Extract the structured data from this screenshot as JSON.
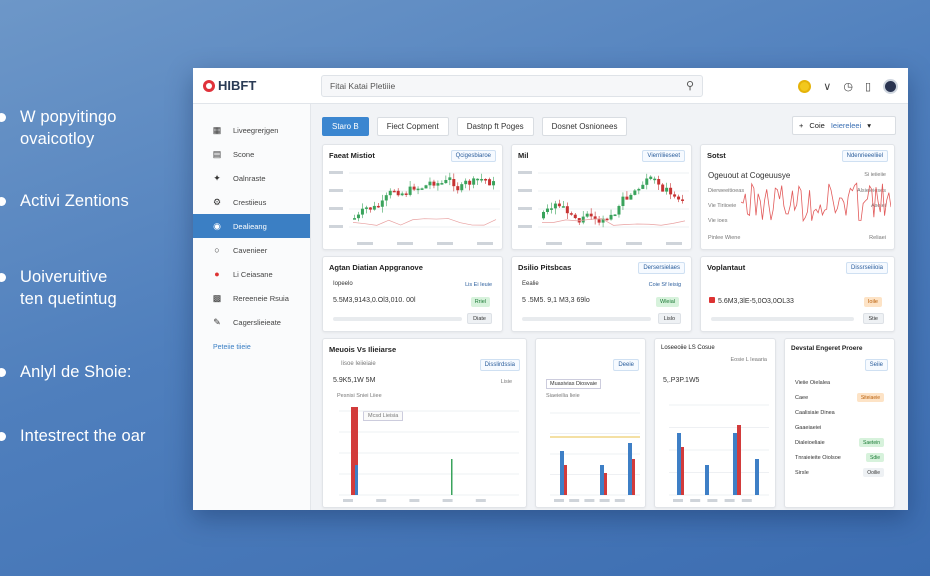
{
  "bullets": [
    {
      "text": "W popyitingo\novaicotloy"
    },
    {
      "text": "Activi Zentions"
    },
    {
      "text": "Uoiveruitive\nten quetintug"
    },
    {
      "text": "Anlyl de Shoie:"
    },
    {
      "text": "Intestrect the oar"
    }
  ],
  "app": {
    "logo_text": "HIBFT",
    "search_placeholder": "Fitai Katai Pletiiie",
    "top_icons": [
      "coin-icon",
      "chevron-down-icon",
      "clock-icon",
      "bookmark-icon",
      "avatar"
    ]
  },
  "sidebar": {
    "items": [
      {
        "label": "Liveegrerjgen",
        "icon": "grid-icon"
      },
      {
        "label": "Scone",
        "icon": "document-icon"
      },
      {
        "label": "Oalnraste",
        "icon": "person-icon"
      },
      {
        "label": "Crestiieus",
        "icon": "gear-icon"
      },
      {
        "label": "Dealieang",
        "icon": "target-icon",
        "active": true
      },
      {
        "label": "Cavenieer",
        "icon": "chat-icon"
      },
      {
        "label": "Li Ceiasane",
        "icon": "alert-icon"
      },
      {
        "label": "Rereeneie Rsuia",
        "icon": "table-icon"
      },
      {
        "label": "Cagerslieieate",
        "icon": "edit-icon"
      }
    ],
    "more_label": "Peteiie tiieie"
  },
  "tabs": [
    {
      "label": "Staro B",
      "active": true
    },
    {
      "label": "Fiect Copment"
    },
    {
      "label": "Dastnp ft Poges"
    },
    {
      "label": "Dosnet Osnionees"
    }
  ],
  "tab_right": {
    "plus": "+",
    "label": "Coie",
    "value": "Ieiereleei"
  },
  "cards": {
    "c1": {
      "title": "Faeat Mistiot",
      "pill": "Qcigesbiaroe"
    },
    "c2": {
      "title": "Mil",
      "pill": "Vierriliieseet"
    },
    "c3": {
      "title": "Sotst",
      "pill": "Ndenrieeeliiel",
      "rows": [
        "Ogeuout at Cogeuusye",
        "Dierweeitioeas",
        "Vie Tiriioeie",
        "Vie ioes",
        "Pinlee Wiene"
      ],
      "right_labels": [
        "Si ieiieiie",
        "Alsieieieses",
        "Aseiei",
        "Reliaei"
      ]
    },
    "c4": {
      "title": "Agtan Diatian Appgranove",
      "subtitle": "Iopeelo",
      "right_text": "Lis Ei Ieuie",
      "value": "5.5M3,9143,0.Ol3,010. 00l",
      "badge": "Rriel",
      "btn": "Diate"
    },
    "c5": {
      "title": "Dsilio Pitsbcas",
      "pill": "Dersersielaes",
      "subtitle": "Eealie",
      "right_text": "Coie Sf Ieisig",
      "value": "5 .5M5. 9,1 M3,3 69lo",
      "badge": "Wleial",
      "btn": "Lislo"
    },
    "c6": {
      "title": "Voplantaut",
      "pill": "Dissrseiiioia",
      "value": "5.6M3,3lE-5,0O3,0OL33",
      "badge": "Ioile",
      "btn": "Stie"
    },
    "c7": {
      "title": "Meuois Vs Ilieiarse",
      "row1": "Iisoe Ieiieiaie",
      "pill": "Disslirdssia",
      "value": "5.9K5,1W 5M",
      "right_text": "Lisie",
      "tiny": "Pesnisi Sniei Liiee",
      "legend": "Mcsd Lieisia"
    },
    "c8": {
      "pill": "Deeie",
      "label": "Muasivias Diosvaie",
      "sub": "Siaeieilia Iieie"
    },
    "c9": {
      "title": "Loseeoiie LS Cosue",
      "pill": "Eosie L Ieaaria",
      "value": "5,.P3P.1W5"
    },
    "c10": {
      "title": "Devstal Engeret Proere",
      "pill": "Seiie",
      "rows": [
        {
          "label": "Vieiie Oielalea",
          "chip": ""
        },
        {
          "label": "Caee",
          "chip": "Siteiaeie",
          "chip_color": "orange"
        },
        {
          "label": "Caalisiaie Dinea",
          "chip": ""
        },
        {
          "label": "Gaaeiaeiei",
          "chip": ""
        },
        {
          "label": "Dialeioeliaie",
          "chip": "Saetein",
          "chip_color": "green"
        },
        {
          "label": "Tnraieieite Oiolsoe",
          "chip": "Sdie",
          "chip_color": "green"
        },
        {
          "label": "Sirsle",
          "chip": "Ooilie",
          "chip_color": "green"
        }
      ]
    }
  },
  "colors": {
    "accent": "#3b86d0",
    "up": "#3aa35c",
    "down": "#c73333",
    "line_red": "#e25b5b",
    "bar_blue": "#3e7fc6",
    "bar_red": "#d23b3b"
  }
}
